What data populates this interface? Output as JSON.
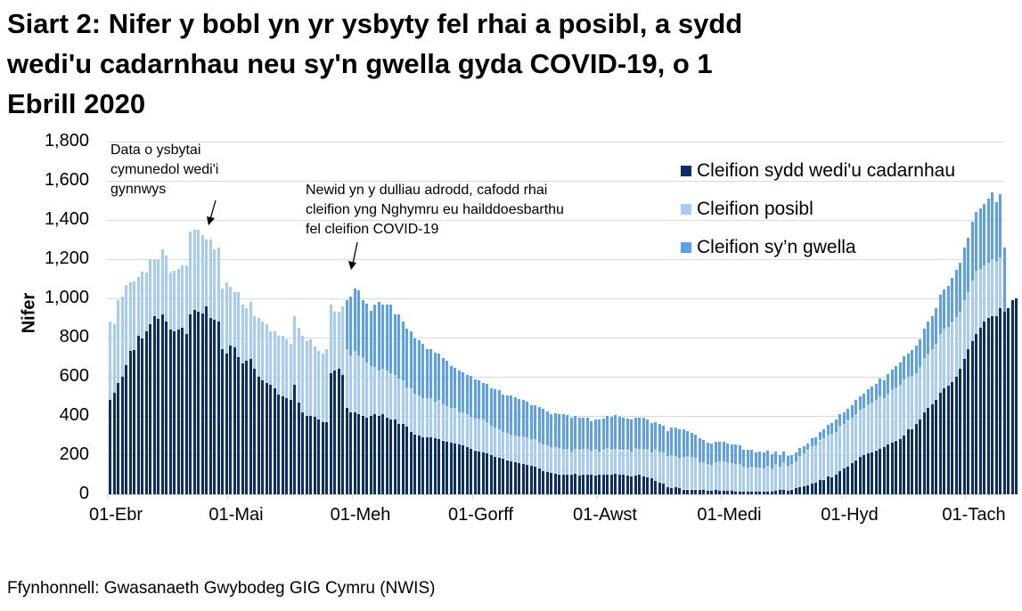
{
  "title": "Siart 2: Nifer y bobl yn yr ysbyty fel rhai a posibl, a sydd wedi'u cadarnhau neu sy'n gwella gyda COVID-19, o 1 Ebrill 2020",
  "title_lines": [
    "Siart 2: Nifer y bobl yn yr ysbyty fel rhai a posibl, a sydd",
    "wedi'u cadarnhau neu sy'n gwella gyda COVID-19, o 1",
    "Ebrill 2020"
  ],
  "source": "Ffynhonnell: Gwasanaeth Gwybodeg GIG Cymru (NWIS)",
  "annotations": [
    {
      "text_lines": [
        "Data o ysbytai",
        "cymunedol wedi'i",
        "gynnwys"
      ]
    },
    {
      "text_lines": [
        "Newid yn y dulliau adrodd, cafodd rhai",
        "cleifion yng Nghymru eu hailddoesbarthu",
        "fel cleifion COVID-19"
      ]
    }
  ],
  "colors": {
    "confirmed": "#0a2f6b",
    "suspected": "#a5cbf7",
    "recovering": "#5a9ff0",
    "grid": "#d9d9d9"
  },
  "chart_data": {
    "type": "bar",
    "stacked": true,
    "title": "Siart 2: Nifer y bobl yn yr ysbyty fel rhai a posibl, a sydd wedi'u cadarnhau neu sy'n gwella gyda COVID-19, o 1 Ebrill 2020",
    "xlabel": "",
    "ylabel": "Nifer",
    "ylim": [
      0,
      1800
    ],
    "yticks": [
      "0",
      "200",
      "400",
      "600",
      "800",
      "1,000",
      "1,200",
      "1,400",
      "1,600",
      "1,800"
    ],
    "xticks": [
      "01-Ebr",
      "01-Mai",
      "01-Meh",
      "01-Gorff",
      "01-Awst",
      "01-Medi",
      "01-Hyd",
      "01-Tach"
    ],
    "xtick_day_index": [
      0,
      30,
      61,
      91,
      122,
      153,
      183,
      214
    ],
    "grid": true,
    "legend_position": "top-right",
    "legend": [
      "Cleifion sydd wedi'u cadarnhau",
      "Cleifion posibl",
      "Cleifion sy’n gwella"
    ],
    "start_date": "01-Ebr",
    "series": [
      {
        "name": "Cleifion sydd wedi'u cadarnhau",
        "color": "#0a2f6b",
        "values": [
          480,
          520,
          570,
          600,
          660,
          730,
          735,
          810,
          795,
          830,
          870,
          910,
          895,
          920,
          880,
          840,
          830,
          840,
          850,
          820,
          920,
          940,
          930,
          925,
          960,
          900,
          890,
          880,
          740,
          720,
          760,
          750,
          700,
          670,
          680,
          690,
          640,
          600,
          580,
          570,
          560,
          540,
          510,
          500,
          490,
          480,
          560,
          470,
          420,
          400,
          400,
          395,
          380,
          370,
          370,
          620,
          630,
          640,
          610,
          440,
          420,
          420,
          410,
          400,
          390,
          400,
          410,
          400,
          410,
          390,
          380,
          380,
          360,
          360,
          345,
          320,
          305,
          300,
          290,
          290,
          290,
          285,
          280,
          275,
          270,
          265,
          260,
          255,
          250,
          240,
          230,
          225,
          220,
          215,
          210,
          200,
          190,
          185,
          180,
          175,
          170,
          165,
          160,
          155,
          150,
          145,
          140,
          130,
          120,
          115,
          110,
          105,
          100,
          100,
          100,
          100,
          105,
          95,
          100,
          100,
          100,
          95,
          100,
          100,
          100,
          100,
          105,
          100,
          100,
          95,
          90,
          95,
          100,
          90,
          85,
          80,
          70,
          60,
          55,
          35,
          30,
          35,
          30,
          25,
          25,
          25,
          25,
          25,
          22,
          20,
          20,
          22,
          20,
          18,
          18,
          16,
          15,
          15,
          14,
          12,
          12,
          15,
          12,
          14,
          12,
          14,
          18,
          22,
          22,
          20,
          25,
          30,
          35,
          40,
          45,
          55,
          60,
          75,
          75,
          90,
          85,
          100,
          120,
          130,
          140,
          160,
          175,
          190,
          200,
          210,
          215,
          225,
          230,
          240,
          255,
          265,
          275,
          280,
          300,
          330,
          330,
          360,
          380,
          420,
          440,
          460,
          480,
          520,
          540,
          555,
          575,
          600,
          640,
          690,
          740,
          780,
          820,
          850,
          880,
          900,
          910,
          910,
          950,
          930,
          950,
          990,
          1000
        ]
      },
      {
        "name": "Cleifion posibl",
        "color": "#a5cbf7",
        "values": [
          400,
          350,
          420,
          410,
          410,
          350,
          350,
          300,
          340,
          300,
          330,
          290,
          300,
          330,
          340,
          290,
          310,
          310,
          320,
          350,
          420,
          410,
          420,
          400,
          340,
          400,
          360,
          380,
          310,
          360,
          300,
          280,
          330,
          300,
          270,
          290,
          270,
          300,
          300,
          300,
          270,
          290,
          300,
          310,
          300,
          290,
          350,
          380,
          390,
          380,
          390,
          360,
          350,
          350,
          370,
          350,
          300,
          290,
          350,
          300,
          290,
          310,
          300,
          300,
          285,
          255,
          240,
          230,
          230,
          240,
          240,
          230,
          230,
          220,
          200,
          220,
          210,
          205,
          200,
          200,
          200,
          190,
          200,
          185,
          180,
          175,
          180,
          165,
          170,
          170,
          165,
          160,
          165,
          165,
          160,
          150,
          150,
          145,
          140,
          140,
          135,
          135,
          135,
          140,
          140,
          135,
          140,
          135,
          135,
          135,
          130,
          135,
          135,
          130,
          130,
          120,
          125,
          130,
          130,
          130,
          125,
          130,
          120,
          125,
          135,
          125,
          125,
          125,
          125,
          130,
          130,
          140,
          130,
          140,
          140,
          135,
          160,
          160,
          160,
          160,
          170,
          160,
          155,
          165,
          170,
          165,
          160,
          140,
          140,
          135,
          130,
          140,
          150,
          150,
          145,
          145,
          140,
          140,
          125,
          125,
          130,
          120,
          125,
          120,
          135,
          120,
          135,
          120,
          140,
          125,
          130,
          140,
          160,
          170,
          180,
          190,
          190,
          200,
          210,
          215,
          225,
          220,
          230,
          230,
          235,
          230,
          235,
          240,
          240,
          250,
          255,
          255,
          270,
          250,
          260,
          270,
          270,
          280,
          285,
          270,
          275,
          260,
          270,
          275,
          280,
          280,
          290,
          300,
          305,
          300,
          300,
          305,
          290,
          300,
          290,
          310,
          320,
          300,
          290,
          280,
          290,
          280,
          260
        ]
      },
      {
        "name": "Cleifion sy’n gwella",
        "color": "#5a9ff0",
        "values": [
          0,
          0,
          0,
          0,
          0,
          0,
          0,
          0,
          0,
          0,
          0,
          0,
          0,
          0,
          0,
          0,
          0,
          0,
          0,
          0,
          0,
          0,
          0,
          0,
          0,
          0,
          0,
          0,
          0,
          0,
          0,
          0,
          0,
          0,
          0,
          0,
          0,
          0,
          0,
          0,
          0,
          0,
          0,
          0,
          0,
          0,
          0,
          0,
          0,
          0,
          0,
          0,
          0,
          0,
          0,
          0,
          0,
          0,
          0,
          250,
          300,
          320,
          330,
          290,
          300,
          280,
          320,
          350,
          330,
          340,
          350,
          310,
          330,
          300,
          300,
          290,
          280,
          280,
          280,
          250,
          250,
          250,
          240,
          235,
          230,
          215,
          205,
          210,
          205,
          200,
          210,
          200,
          195,
          190,
          195,
          190,
          195,
          200,
          190,
          190,
          200,
          195,
          190,
          185,
          185,
          175,
          175,
          180,
          180,
          175,
          170,
          175,
          175,
          180,
          175,
          170,
          170,
          165,
          160,
          160,
          150,
          155,
          160,
          160,
          165,
          170,
          175,
          170,
          165,
          160,
          160,
          155,
          160,
          160,
          155,
          150,
          140,
          140,
          135,
          130,
          140,
          145,
          145,
          140,
          130,
          125,
          120,
          120,
          115,
          110,
          110,
          105,
          100,
          100,
          95,
          95,
          100,
          95,
          90,
          90,
          85,
          80,
          80,
          80,
          75,
          70,
          65,
          60,
          55,
          50,
          45,
          45,
          40,
          35,
          35,
          40,
          40,
          45,
          45,
          50,
          55,
          60,
          60,
          60,
          60,
          65,
          70,
          70,
          75,
          75,
          80,
          85,
          90,
          90,
          100,
          100,
          110,
          115,
          120,
          120,
          130,
          140,
          140,
          150,
          160,
          170,
          180,
          200,
          200,
          210,
          230,
          240,
          250,
          270,
          280,
          300,
          300,
          310,
          310,
          330,
          340,
          300,
          320,
          330
        ]
      }
    ]
  }
}
